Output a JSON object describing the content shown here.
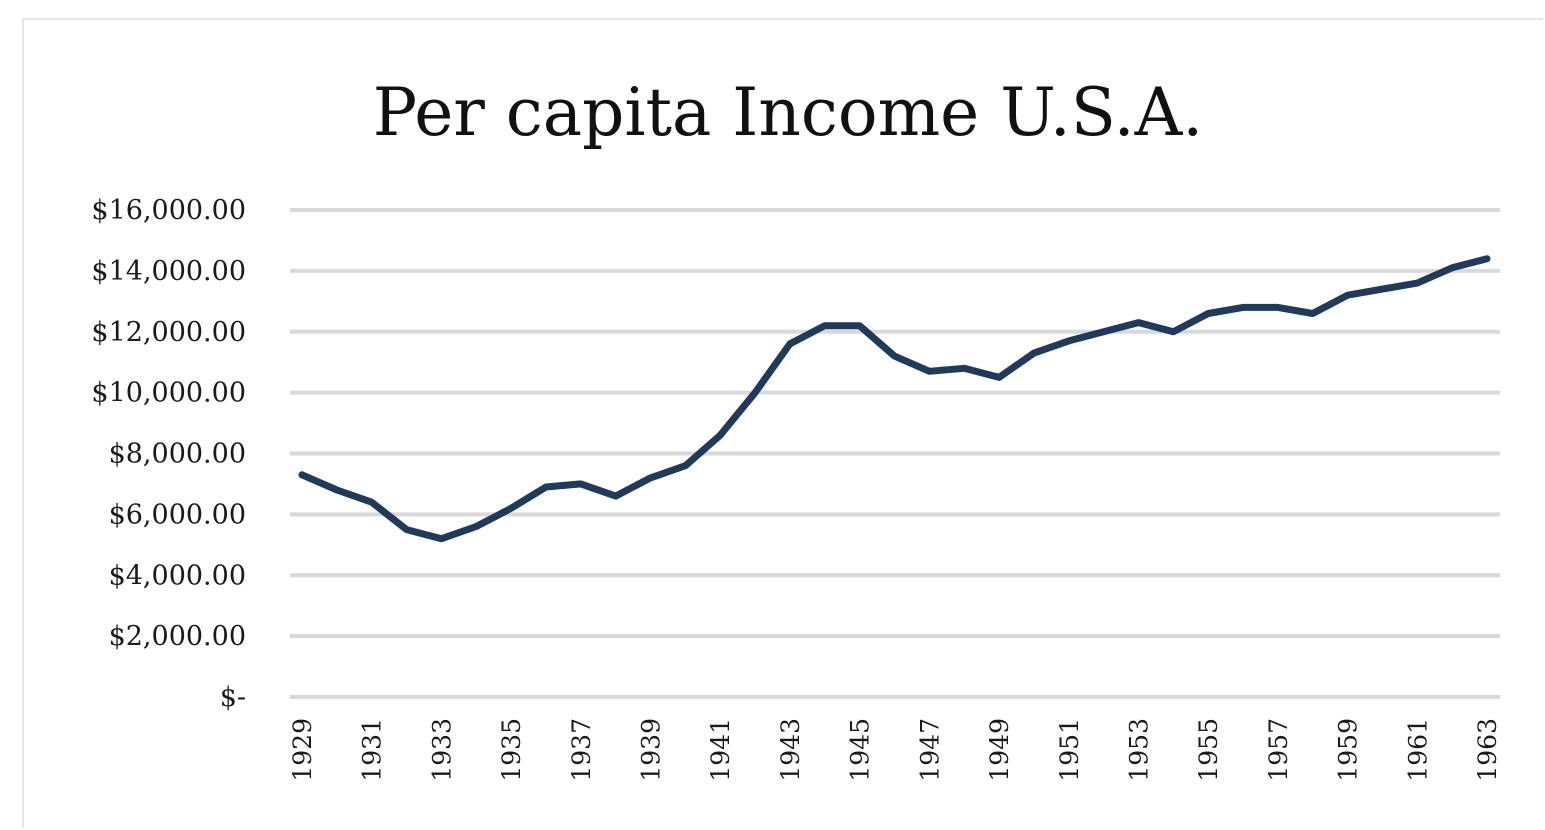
{
  "chart_data": {
    "type": "line",
    "title": "Per capita Income U.S.A.",
    "xlabel": "",
    "ylabel": "",
    "ylim": [
      0,
      16000
    ],
    "y_ticks": [
      {
        "value": 0,
        "label": "$-"
      },
      {
        "value": 2000,
        "label": "$2,000.00"
      },
      {
        "value": 4000,
        "label": "$4,000.00"
      },
      {
        "value": 6000,
        "label": "$6,000.00"
      },
      {
        "value": 8000,
        "label": "$8,000.00"
      },
      {
        "value": 10000,
        "label": "$10,000.00"
      },
      {
        "value": 12000,
        "label": "$12,000.00"
      },
      {
        "value": 14000,
        "label": "$14,000.00"
      },
      {
        "value": 16000,
        "label": "$16,000.00"
      }
    ],
    "x": [
      1929,
      1930,
      1931,
      1932,
      1933,
      1934,
      1935,
      1936,
      1937,
      1938,
      1939,
      1940,
      1941,
      1942,
      1943,
      1944,
      1945,
      1946,
      1947,
      1948,
      1949,
      1950,
      1951,
      1952,
      1953,
      1954,
      1955,
      1956,
      1957,
      1958,
      1959,
      1960,
      1961,
      1962,
      1963
    ],
    "x_tick_labels": [
      "1929",
      "1931",
      "1933",
      "1935",
      "1937",
      "1939",
      "1941",
      "1943",
      "1945",
      "1947",
      "1949",
      "1951",
      "1953",
      "1955",
      "1957",
      "1959",
      "1961",
      "1963"
    ],
    "grid": true,
    "legend": "none",
    "series": [
      {
        "color": "#1f3a5a",
        "values": [
          7300,
          6800,
          6400,
          5500,
          5200,
          5600,
          6200,
          6900,
          7000,
          6600,
          7200,
          7600,
          8600,
          10000,
          11600,
          12200,
          12200,
          11200,
          10700,
          10800,
          10500,
          11300,
          11700,
          12000,
          12300,
          12000,
          12600,
          12800,
          12800,
          12600,
          13200,
          13400,
          13600,
          14100,
          14400
        ]
      }
    ]
  }
}
